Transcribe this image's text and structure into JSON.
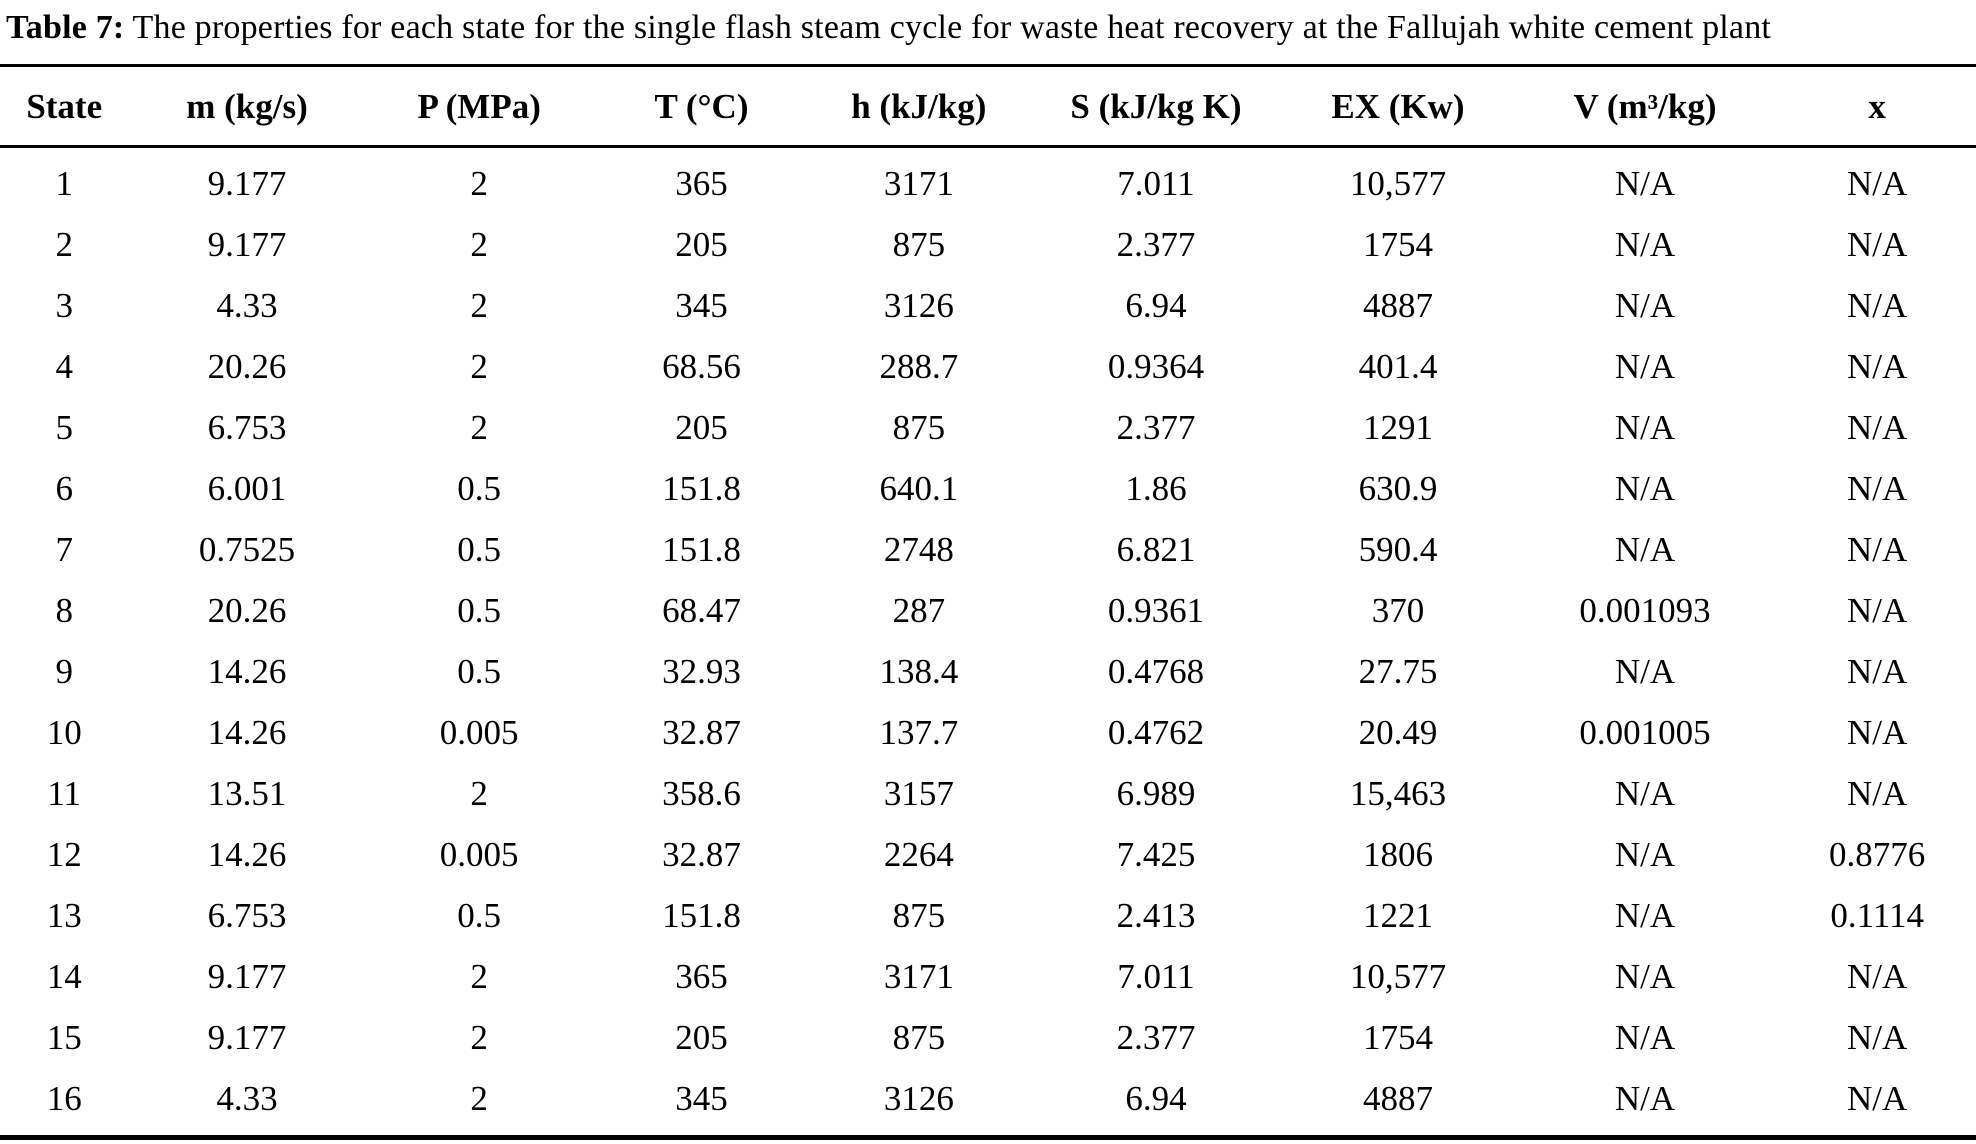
{
  "caption": {
    "label": "Table 7:",
    "text": " The properties for each state for the single flash steam cycle for waste heat recovery at the Fallujah white cement plant"
  },
  "table": {
    "columns": [
      "State",
      "m (kg/s)",
      "P (MPa)",
      "T (°C)",
      "h (kJ/kg)",
      "S (kJ/kg K)",
      "EX (Kw)",
      "V (m³/kg)",
      "x"
    ],
    "rows": [
      [
        "1",
        "9.177",
        "2",
        "365",
        "3171",
        "7.011",
        "10,577",
        "N/A",
        "N/A"
      ],
      [
        "2",
        "9.177",
        "2",
        "205",
        "875",
        "2.377",
        "1754",
        "N/A",
        "N/A"
      ],
      [
        "3",
        "4.33",
        "2",
        "345",
        "3126",
        "6.94",
        "4887",
        "N/A",
        "N/A"
      ],
      [
        "4",
        "20.26",
        "2",
        "68.56",
        "288.7",
        "0.9364",
        "401.4",
        "N/A",
        "N/A"
      ],
      [
        "5",
        "6.753",
        "2",
        "205",
        "875",
        "2.377",
        "1291",
        "N/A",
        "N/A"
      ],
      [
        "6",
        "6.001",
        "0.5",
        "151.8",
        "640.1",
        "1.86",
        "630.9",
        "N/A",
        "N/A"
      ],
      [
        "7",
        "0.7525",
        "0.5",
        "151.8",
        "2748",
        "6.821",
        "590.4",
        "N/A",
        "N/A"
      ],
      [
        "8",
        "20.26",
        "0.5",
        "68.47",
        "287",
        "0.9361",
        "370",
        "0.001093",
        "N/A"
      ],
      [
        "9",
        "14.26",
        "0.5",
        "32.93",
        "138.4",
        "0.4768",
        "27.75",
        "N/A",
        "N/A"
      ],
      [
        "10",
        "14.26",
        "0.005",
        "32.87",
        "137.7",
        "0.4762",
        "20.49",
        "0.001005",
        "N/A"
      ],
      [
        "11",
        "13.51",
        "2",
        "358.6",
        "3157",
        "6.989",
        "15,463",
        "N/A",
        "N/A"
      ],
      [
        "12",
        "14.26",
        "0.005",
        "32.87",
        "2264",
        "7.425",
        "1806",
        "N/A",
        "0.8776"
      ],
      [
        "13",
        "6.753",
        "0.5",
        "151.8",
        "875",
        "2.413",
        "1221",
        "N/A",
        "0.1114"
      ],
      [
        "14",
        "9.177",
        "2",
        "365",
        "3171",
        "7.011",
        "10,577",
        "N/A",
        "N/A"
      ],
      [
        "15",
        "9.177",
        "2",
        "205",
        "875",
        "2.377",
        "1754",
        "N/A",
        "N/A"
      ],
      [
        "16",
        "4.33",
        "2",
        "345",
        "3126",
        "6.94",
        "4887",
        "N/A",
        "N/A"
      ]
    ]
  },
  "chart_data": {
    "type": "table",
    "title": "Table 7: The properties for each state for the single flash steam cycle for waste heat recovery at the Fallujah white cement plant",
    "columns": [
      "State",
      "m (kg/s)",
      "P (MPa)",
      "T (°C)",
      "h (kJ/kg)",
      "S (kJ/kg K)",
      "EX (Kw)",
      "V (m³/kg)",
      "x"
    ],
    "rows": [
      [
        "1",
        "9.177",
        "2",
        "365",
        "3171",
        "7.011",
        "10,577",
        "N/A",
        "N/A"
      ],
      [
        "2",
        "9.177",
        "2",
        "205",
        "875",
        "2.377",
        "1754",
        "N/A",
        "N/A"
      ],
      [
        "3",
        "4.33",
        "2",
        "345",
        "3126",
        "6.94",
        "4887",
        "N/A",
        "N/A"
      ],
      [
        "4",
        "20.26",
        "2",
        "68.56",
        "288.7",
        "0.9364",
        "401.4",
        "N/A",
        "N/A"
      ],
      [
        "5",
        "6.753",
        "2",
        "205",
        "875",
        "2.377",
        "1291",
        "N/A",
        "N/A"
      ],
      [
        "6",
        "6.001",
        "0.5",
        "151.8",
        "640.1",
        "1.86",
        "630.9",
        "N/A",
        "N/A"
      ],
      [
        "7",
        "0.7525",
        "0.5",
        "151.8",
        "2748",
        "6.821",
        "590.4",
        "N/A",
        "N/A"
      ],
      [
        "8",
        "20.26",
        "0.5",
        "68.47",
        "287",
        "0.9361",
        "370",
        "0.001093",
        "N/A"
      ],
      [
        "9",
        "14.26",
        "0.5",
        "32.93",
        "138.4",
        "0.4768",
        "27.75",
        "N/A",
        "N/A"
      ],
      [
        "10",
        "14.26",
        "0.005",
        "32.87",
        "137.7",
        "0.4762",
        "20.49",
        "0.001005",
        "N/A"
      ],
      [
        "11",
        "13.51",
        "2",
        "358.6",
        "3157",
        "6.989",
        "15,463",
        "N/A",
        "N/A"
      ],
      [
        "12",
        "14.26",
        "0.005",
        "32.87",
        "2264",
        "7.425",
        "1806",
        "N/A",
        "0.8776"
      ],
      [
        "13",
        "6.753",
        "0.5",
        "151.8",
        "875",
        "2.413",
        "1221",
        "N/A",
        "0.1114"
      ],
      [
        "14",
        "9.177",
        "2",
        "365",
        "3171",
        "7.011",
        "10,577",
        "N/A",
        "N/A"
      ],
      [
        "15",
        "9.177",
        "2",
        "205",
        "875",
        "2.377",
        "1754",
        "N/A",
        "N/A"
      ],
      [
        "16",
        "4.33",
        "2",
        "345",
        "3126",
        "6.94",
        "4887",
        "N/A",
        "N/A"
      ]
    ],
    "colors": {
      "text": "#000000",
      "background": "#ffffff",
      "rules": "#000000"
    }
  }
}
